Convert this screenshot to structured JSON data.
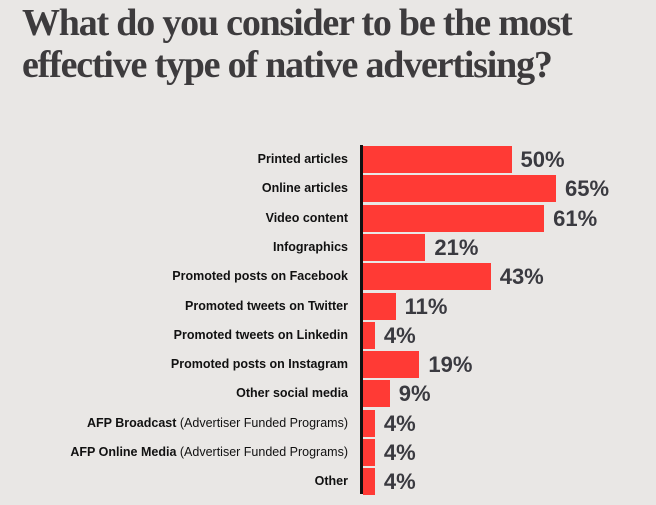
{
  "title_line1": "What do you consider to be the most",
  "title_line2": "effective type of native advertising?",
  "colors": {
    "bar": "#ff3a35",
    "value_text": "#3a3a40",
    "background": "#e9e7e5",
    "axis": "#111111"
  },
  "chart_data": {
    "type": "bar",
    "orientation": "horizontal",
    "title": "What do you consider to be the most effective type of native advertising?",
    "xlabel": "",
    "ylabel": "",
    "unit": "%",
    "grid": false,
    "legend": null,
    "categories": [
      "Printed articles",
      "Online articles",
      "Video content",
      "Infographics",
      "Promoted posts on Facebook",
      "Promoted tweets on Twitter",
      "Promoted tweets on Linkedin",
      "Promoted posts on Instagram",
      "Other social media",
      "AFP Broadcast (Advertiser Funded Programs)",
      "AFP Online Media (Advertiser Funded Programs)",
      "Other"
    ],
    "values": [
      50,
      65,
      61,
      21,
      43,
      11,
      4,
      19,
      9,
      4,
      4,
      4
    ]
  },
  "rows": [
    {
      "bold": "Printed articles",
      "paren": "",
      "value": "50%"
    },
    {
      "bold": "Online articles",
      "paren": "",
      "value": "65%"
    },
    {
      "bold": "Video content",
      "paren": "",
      "value": "61%"
    },
    {
      "bold": "Infographics",
      "paren": "",
      "value": "21%"
    },
    {
      "bold": "Promoted posts on Facebook",
      "paren": "",
      "value": "43%"
    },
    {
      "bold": "Promoted tweets on Twitter",
      "paren": "",
      "value": "11%"
    },
    {
      "bold": "Promoted tweets on Linkedin",
      "paren": "",
      "value": "4%"
    },
    {
      "bold": "Promoted posts on Instagram",
      "paren": "",
      "value": "19%"
    },
    {
      "bold": "Other social media",
      "paren": "",
      "value": "9%"
    },
    {
      "bold": "AFP Broadcast",
      "paren": " (Advertiser Funded Programs)",
      "value": "4%"
    },
    {
      "bold": "AFP Online Media",
      "paren": " (Advertiser Funded Programs)",
      "value": "4%"
    },
    {
      "bold": "Other",
      "paren": "",
      "value": "4%"
    }
  ]
}
